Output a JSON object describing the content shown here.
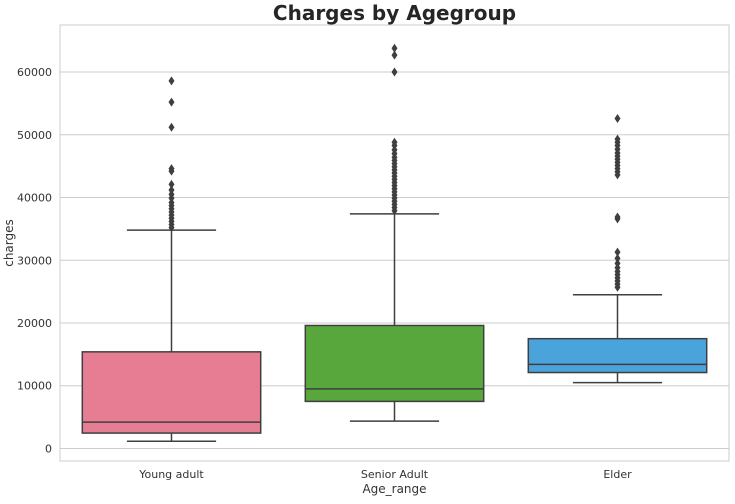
{
  "chart_data": {
    "type": "box",
    "title": "Charges by Agegroup",
    "xlabel": "Age_range",
    "ylabel": "charges",
    "ylim": [
      -2000,
      67500
    ],
    "yticks": [
      0,
      10000,
      20000,
      30000,
      40000,
      50000,
      60000
    ],
    "grid": "horizontal",
    "categories": [
      "Young adult",
      "Senior Adult",
      "Elder"
    ],
    "boxes": [
      {
        "category": "Young adult",
        "color": "#e77d92",
        "whisker_low": 1150,
        "q1": 2450,
        "median": 4200,
        "q3": 15400,
        "whisker_high": 34800,
        "outliers": [
          35200,
          35700,
          36200,
          36700,
          37200,
          37700,
          38200,
          38700,
          39200,
          39900,
          40500,
          41200,
          42100,
          44200,
          44600,
          51200,
          55200,
          58600
        ]
      },
      {
        "category": "Senior Adult",
        "color": "#58a73c",
        "whisker_low": 4350,
        "q1": 7500,
        "median": 9500,
        "q3": 19600,
        "whisker_high": 37400,
        "outliers": [
          37900,
          38400,
          38900,
          39400,
          39900,
          40400,
          40900,
          41400,
          41900,
          42400,
          42900,
          43400,
          43900,
          44400,
          44900,
          45400,
          45900,
          46400,
          47000,
          47600,
          48300,
          48800,
          60000,
          62700,
          63800
        ]
      },
      {
        "category": "Elder",
        "color": "#4ba3dc",
        "whisker_low": 10500,
        "q1": 12100,
        "median": 13400,
        "q3": 17500,
        "whisker_high": 24500,
        "outliers": [
          25700,
          26200,
          26700,
          27200,
          27700,
          28200,
          28800,
          29500,
          30300,
          31300,
          36600,
          36900,
          43600,
          44100,
          44600,
          45100,
          45600,
          46100,
          46600,
          47100,
          47700,
          48300,
          48800,
          49300,
          52600
        ]
      }
    ]
  }
}
